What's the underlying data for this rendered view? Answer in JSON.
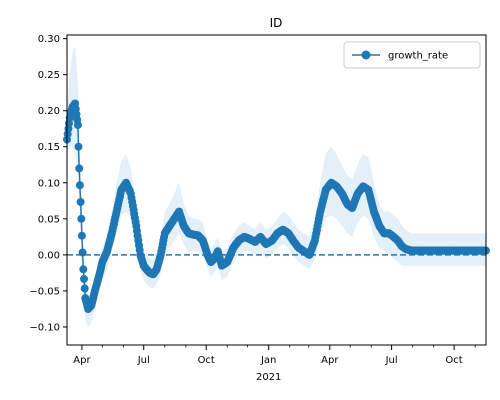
{
  "chart_data": {
    "type": "line",
    "title": "ID",
    "xlabel": "",
    "ylabel": "",
    "x_start": "2020-03-10",
    "x_end": "2021-11-17",
    "xlim": [
      "2020-03-10",
      "2021-11-17"
    ],
    "ylim": [
      -0.125,
      0.305
    ],
    "y_ticks": [
      -0.1,
      -0.05,
      0.0,
      0.05,
      0.1,
      0.15,
      0.2,
      0.25,
      0.3
    ],
    "y_tick_labels": [
      "−0.10",
      "−0.05",
      "0.00",
      "0.05",
      "0.10",
      "0.15",
      "0.20",
      "0.25",
      "0.30"
    ],
    "x_ticks": [
      {
        "date": "2020-04-01",
        "label": "Apr",
        "sublabel": ""
      },
      {
        "date": "2020-07-01",
        "label": "Jul",
        "sublabel": ""
      },
      {
        "date": "2020-10-01",
        "label": "Oct",
        "sublabel": ""
      },
      {
        "date": "2021-01-01",
        "label": "Jan",
        "sublabel": "2021"
      },
      {
        "date": "2021-04-01",
        "label": "Apr",
        "sublabel": ""
      },
      {
        "date": "2021-07-01",
        "label": "Jul",
        "sublabel": ""
      },
      {
        "date": "2021-10-01",
        "label": "Oct",
        "sublabel": ""
      }
    ],
    "minor_ticks": [
      "2020-05-01",
      "2020-06-01",
      "2020-08-01",
      "2020-09-01",
      "2020-11-01",
      "2020-12-01",
      "2021-02-01",
      "2021-03-01",
      "2021-05-01",
      "2021-06-01",
      "2021-08-01",
      "2021-09-01",
      "2021-11-01"
    ],
    "reference_line": {
      "y": 0,
      "style": "dashed"
    },
    "legend": {
      "placement": "top-right"
    },
    "colors": {
      "series": "#1f77b4",
      "band": "#c6dbef"
    },
    "series": [
      {
        "name": "growth_rate",
        "marker": "circle",
        "x": [
          "2020-03-10",
          "2020-03-14",
          "2020-03-18",
          "2020-03-22",
          "2020-03-26",
          "2020-03-28",
          "2020-03-31",
          "2020-04-03",
          "2020-04-06",
          "2020-04-10",
          "2020-04-15",
          "2020-04-20",
          "2020-04-26",
          "2020-05-01",
          "2020-05-08",
          "2020-05-15",
          "2020-05-22",
          "2020-05-29",
          "2020-06-05",
          "2020-06-12",
          "2020-06-20",
          "2020-06-26",
          "2020-07-01",
          "2020-07-05",
          "2020-07-10",
          "2020-07-15",
          "2020-07-20",
          "2020-07-26",
          "2020-08-01",
          "2020-08-08",
          "2020-08-15",
          "2020-08-22",
          "2020-08-29",
          "2020-09-05",
          "2020-09-12",
          "2020-09-19",
          "2020-09-26",
          "2020-10-03",
          "2020-10-08",
          "2020-10-13",
          "2020-10-18",
          "2020-10-24",
          "2020-11-01",
          "2020-11-10",
          "2020-11-18",
          "2020-11-26",
          "2020-12-04",
          "2020-12-12",
          "2020-12-20",
          "2020-12-28",
          "2021-01-06",
          "2021-01-14",
          "2021-01-22",
          "2021-01-30",
          "2021-02-06",
          "2021-02-14",
          "2021-02-22",
          "2021-03-02",
          "2021-03-10",
          "2021-03-18",
          "2021-03-26",
          "2021-04-03",
          "2021-04-11",
          "2021-04-19",
          "2021-04-27",
          "2021-05-04",
          "2021-05-12",
          "2021-05-20",
          "2021-05-28",
          "2021-06-05",
          "2021-06-13",
          "2021-06-20",
          "2021-06-27",
          "2021-07-04",
          "2021-07-10",
          "2021-07-16",
          "2021-07-22",
          "2021-07-30",
          "2021-08-07",
          "2021-08-14",
          "2021-08-21",
          "2021-08-28",
          "2021-09-03",
          "2021-09-10",
          "2021-09-17",
          "2021-09-25",
          "2021-10-03",
          "2021-10-11",
          "2021-10-19",
          "2021-10-27",
          "2021-11-04",
          "2021-11-12",
          "2021-11-17"
        ],
        "y": [
          0.16,
          0.19,
          0.205,
          0.21,
          0.18,
          0.12,
          0.05,
          -0.02,
          -0.06,
          -0.075,
          -0.07,
          -0.05,
          -0.03,
          -0.01,
          0.005,
          0.03,
          0.06,
          0.09,
          0.1,
          0.085,
          0.04,
          0.0,
          -0.015,
          -0.02,
          -0.025,
          -0.027,
          -0.02,
          0.0,
          0.03,
          0.04,
          0.05,
          0.06,
          0.04,
          0.03,
          0.028,
          0.027,
          0.02,
          0.0,
          -0.01,
          -0.005,
          0.005,
          -0.015,
          -0.01,
          0.01,
          0.02,
          0.025,
          0.022,
          0.018,
          0.025,
          0.015,
          0.02,
          0.03,
          0.035,
          0.03,
          0.02,
          0.01,
          0.005,
          0.0,
          0.02,
          0.06,
          0.09,
          0.1,
          0.095,
          0.085,
          0.07,
          0.065,
          0.085,
          0.095,
          0.09,
          0.06,
          0.04,
          0.03,
          0.03,
          0.025,
          0.02,
          0.012,
          0.008,
          0.006,
          0.006,
          0.006,
          0.006,
          0.006,
          0.006,
          0.006,
          0.006,
          0.006,
          0.006,
          0.006,
          0.006,
          0.006,
          0.006,
          0.006,
          0.006
        ],
        "lower": [
          0.14,
          0.15,
          0.15,
          0.14,
          0.12,
          0.08,
          0.02,
          -0.05,
          -0.09,
          -0.1,
          -0.095,
          -0.075,
          -0.055,
          -0.035,
          -0.02,
          0.005,
          0.03,
          0.055,
          0.06,
          0.05,
          0.015,
          -0.02,
          -0.035,
          -0.04,
          -0.045,
          -0.047,
          -0.04,
          -0.025,
          0.0,
          0.01,
          0.02,
          0.03,
          0.015,
          0.005,
          0.005,
          0.005,
          0.0,
          -0.02,
          -0.03,
          -0.025,
          -0.015,
          -0.035,
          -0.03,
          -0.01,
          0.0,
          0.005,
          0.005,
          0.0,
          0.005,
          -0.005,
          0.0,
          0.01,
          0.015,
          0.01,
          0.0,
          -0.01,
          -0.015,
          -0.02,
          -0.005,
          0.025,
          0.05,
          0.055,
          0.05,
          0.04,
          0.03,
          0.025,
          0.045,
          0.055,
          0.05,
          0.025,
          0.01,
          0.005,
          0.0,
          -0.005,
          -0.01,
          -0.015,
          -0.015,
          -0.015,
          -0.015,
          -0.015,
          -0.015,
          -0.015,
          -0.015,
          -0.015,
          -0.015,
          -0.015,
          -0.015,
          -0.015,
          -0.015,
          -0.015,
          -0.015,
          -0.015,
          -0.015
        ],
        "upper": [
          0.2,
          0.25,
          0.28,
          0.29,
          0.24,
          0.16,
          0.08,
          0.0,
          -0.04,
          -0.055,
          -0.05,
          -0.03,
          -0.01,
          0.01,
          0.03,
          0.06,
          0.1,
          0.13,
          0.14,
          0.12,
          0.07,
          0.025,
          0.005,
          0.0,
          -0.005,
          -0.007,
          0.005,
          0.025,
          0.06,
          0.07,
          0.085,
          0.1,
          0.07,
          0.055,
          0.05,
          0.05,
          0.045,
          0.02,
          0.01,
          0.015,
          0.025,
          0.005,
          0.01,
          0.03,
          0.04,
          0.045,
          0.04,
          0.035,
          0.045,
          0.035,
          0.04,
          0.05,
          0.06,
          0.055,
          0.045,
          0.035,
          0.03,
          0.025,
          0.05,
          0.1,
          0.14,
          0.15,
          0.14,
          0.125,
          0.11,
          0.105,
          0.125,
          0.14,
          0.135,
          0.1,
          0.07,
          0.06,
          0.06,
          0.055,
          0.05,
          0.04,
          0.035,
          0.03,
          0.03,
          0.03,
          0.03,
          0.03,
          0.03,
          0.03,
          0.03,
          0.03,
          0.03,
          0.03,
          0.03,
          0.03,
          0.03,
          0.03,
          0.03
        ]
      }
    ]
  }
}
